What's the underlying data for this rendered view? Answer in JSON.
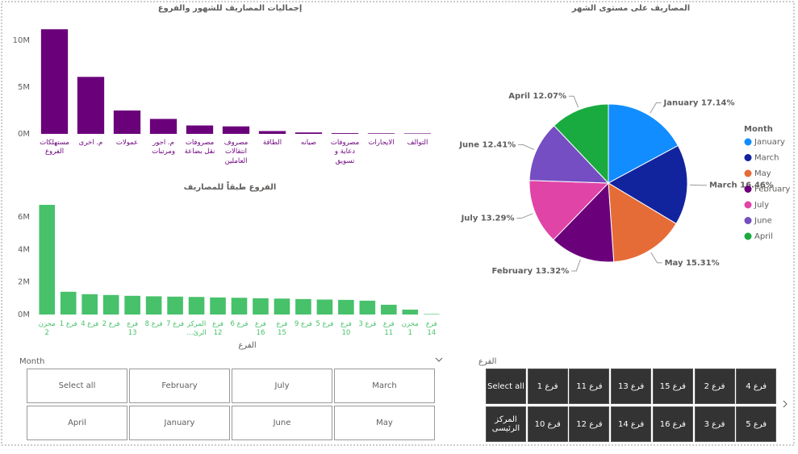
{
  "chart_data": [
    {
      "type": "bar",
      "title": "إجماليات المصاريف للشهور والفروع",
      "categories": [
        "مستهلكات الفروع",
        "م. اخرى",
        "عمولات",
        "م. اجور ومرتبات",
        "مصروفات نقل بضاعة",
        "مصروف انتقالات العاملين",
        "الطاقة",
        "صيانه",
        "مصروفات دعاية و تسويق",
        "الايجارات",
        "التوالف"
      ],
      "values": [
        11.2,
        6.1,
        2.5,
        1.6,
        0.9,
        0.8,
        0.3,
        0.15,
        0.08,
        0.06,
        0.05
      ],
      "color": "#6b007b",
      "ylim": [
        0,
        12
      ],
      "yticks": [
        {
          "value": 0,
          "label": "0M"
        },
        {
          "value": 5,
          "label": "5M"
        },
        {
          "value": 10,
          "label": "10M"
        }
      ],
      "grid": false
    },
    {
      "type": "bar",
      "title": "الفروع طبقاً للمصاريف",
      "x_label": "الفرع",
      "categories": [
        "مخزن 2",
        "فرع 1",
        "فرع 4",
        "فرع 2",
        "فرع 13",
        "فرع 8",
        "فرع 7",
        "المركز الرئ...",
        "فرع 12",
        "فرع 6",
        "فرع 16",
        "فرع 15",
        "فرع 9",
        "فرع 5",
        "فرع 10",
        "فرع 3",
        "فرع 11",
        "مخزن 1",
        "فرع 14"
      ],
      "values": [
        6.75,
        1.4,
        1.25,
        1.2,
        1.15,
        1.12,
        1.1,
        1.08,
        1.05,
        1.03,
        1.0,
        0.98,
        0.95,
        0.92,
        0.9,
        0.85,
        0.6,
        0.3,
        0.03
      ],
      "color": "#47c16a",
      "ylim": [
        0,
        7
      ],
      "yticks": [
        {
          "value": 0,
          "label": "0M"
        },
        {
          "value": 2,
          "label": "2M"
        },
        {
          "value": 4,
          "label": "4M"
        },
        {
          "value": 6,
          "label": "6M"
        }
      ],
      "grid": false
    },
    {
      "type": "pie",
      "title": "المصاريف على مستوى الشهر",
      "legend_title": "Month",
      "legend": "right",
      "categories": [
        "January",
        "March",
        "May",
        "February",
        "July",
        "June",
        "April"
      ],
      "values": [
        17.14,
        16.46,
        15.31,
        13.32,
        13.29,
        12.41,
        12.07
      ],
      "value_labels": [
        "January 17.14%",
        "March 16.46%",
        "May 15.31%",
        "February 13.32%",
        "July 13.29%",
        "June 12.41%",
        "April 12.07%"
      ],
      "colors": [
        "#118dff",
        "#12239e",
        "#e66c37",
        "#6b007b",
        "#e044a7",
        "#744ec2",
        "#1aab40"
      ]
    }
  ],
  "slicers": [
    {
      "title": "Month",
      "items": [
        "Select all",
        "February",
        "July",
        "March",
        "April",
        "January",
        "June",
        "May"
      ]
    },
    {
      "title": "الفرع",
      "items": [
        "Select all",
        "فرع 1",
        "فرع 11",
        "فرع 13",
        "فرع 15",
        "فرع 2",
        "فرع 4",
        "المركز الرئيسى",
        "فرع 10",
        "فرع 12",
        "فرع 14",
        "فرع 16",
        "فرع 3",
        "فرع 5"
      ]
    }
  ]
}
